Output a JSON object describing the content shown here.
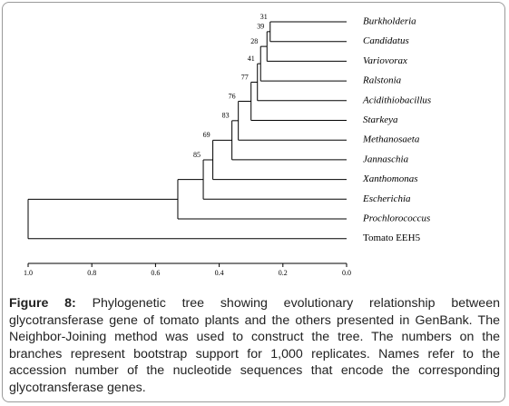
{
  "chart_data": {
    "type": "tree",
    "xlim": [
      1.0,
      0.0
    ],
    "xticks": [
      {
        "value": 1.0,
        "label": "1.0"
      },
      {
        "value": 0.8,
        "label": "0.8"
      },
      {
        "value": 0.6,
        "label": "0.6"
      },
      {
        "value": 0.4,
        "label": "0.4"
      },
      {
        "value": 0.2,
        "label": "0.2"
      },
      {
        "value": 0.0,
        "label": "0.0"
      }
    ],
    "tree": {
      "height": 1.0,
      "children": [
        {
          "height": 0.53,
          "children": [
            {
              "height": 0.45,
              "bootstrap": 85,
              "children": [
                {
                  "height": 0.42,
                  "bootstrap": 69,
                  "children": [
                    {
                      "height": 0.36,
                      "bootstrap": 83,
                      "children": [
                        {
                          "height": 0.34,
                          "bootstrap": 76,
                          "children": [
                            {
                              "height": 0.3,
                              "bootstrap": 77,
                              "children": [
                                {
                                  "height": 0.28,
                                  "bootstrap": 41,
                                  "children": [
                                    {
                                      "height": 0.27,
                                      "bootstrap": 28,
                                      "children": [
                                        {
                                          "height": 0.25,
                                          "bootstrap": 39,
                                          "children": [
                                            {
                                              "height": 0.24,
                                              "bootstrap": 31,
                                              "children": [
                                                {
                                                  "label": "Burkholderia"
                                                },
                                                {
                                                  "label": "Candidatus"
                                                }
                                              ]
                                            },
                                            {
                                              "label": "Variovorax"
                                            }
                                          ]
                                        },
                                        {
                                          "label": "Ralstonia"
                                        }
                                      ]
                                    },
                                    {
                                      "label": "Acidithiobacillus"
                                    }
                                  ]
                                },
                                {
                                  "label": "Starkeya"
                                }
                              ]
                            },
                            {
                              "label": "Methanosaeta"
                            }
                          ]
                        },
                        {
                          "label": "Jannaschia"
                        }
                      ]
                    },
                    {
                      "label": "Xanthomonas"
                    }
                  ]
                },
                {
                  "label": "Escherichia"
                }
              ]
            },
            {
              "label": "Prochlorococcus"
            }
          ]
        },
        {
          "label": "Tomato EEH5",
          "italic": false
        }
      ]
    }
  },
  "caption": {
    "label": "Figure 8:",
    "text": "Phylogenetic tree showing evolutionary relationship between glycotransferase gene of tomato plants and the others presented in GenBank. The Neighbor-Joining method was used to construct the tree. The numbers on the branches represent bootstrap support for 1,000 replicates. Names refer to the accession number of the nucleotide sequences that encode the corresponding glycotransferase genes."
  }
}
